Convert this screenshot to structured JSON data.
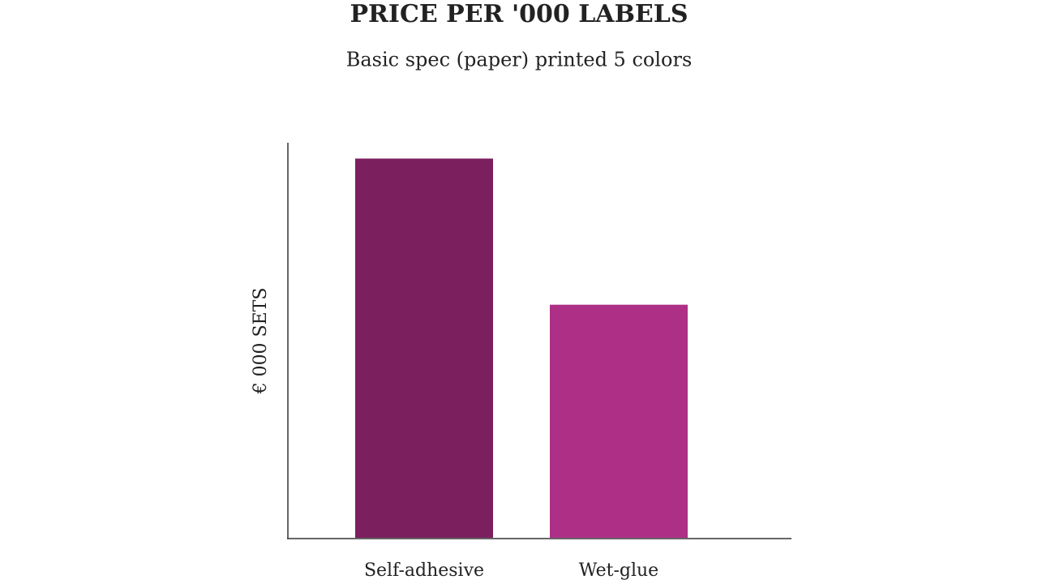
{
  "chart_data": {
    "type": "bar",
    "title": "PRICE PER '000 LABELS",
    "subtitle": "Basic spec (paper) printed 5 colors",
    "y_label": "€ 000 SETS",
    "categories": [
      "Self-adhesive",
      "Wet-glue"
    ],
    "values": [
      96,
      59
    ],
    "colors": [
      "#7b1f5e",
      "#ae2f86"
    ],
    "ylim": [
      0,
      100
    ]
  }
}
